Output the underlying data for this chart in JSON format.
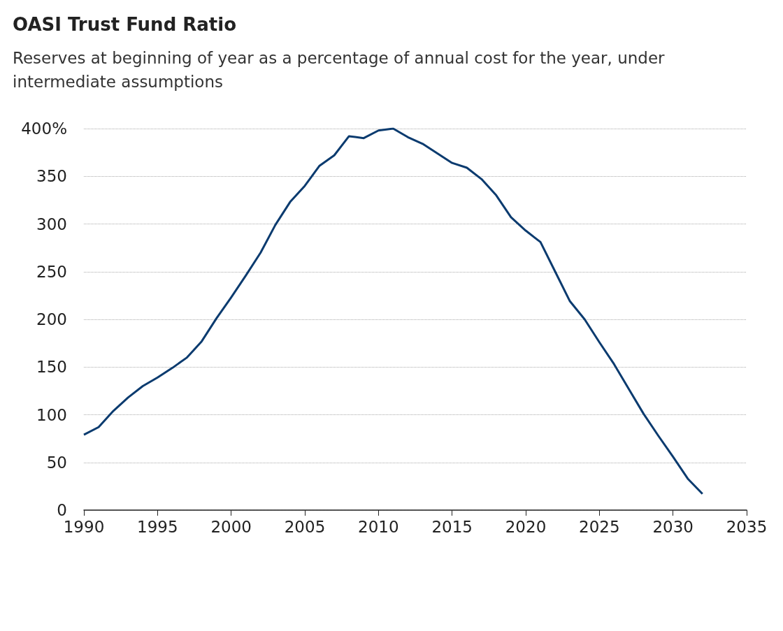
{
  "chart_data": {
    "type": "line",
    "title": "OASI Trust Fund Ratio",
    "subtitle": "Reserves at beginning of year as a percentage of annual cost for the year, under intermediate assumptions",
    "x": [
      1990,
      1991,
      1992,
      1993,
      1994,
      1995,
      1996,
      1997,
      1998,
      1999,
      2000,
      2001,
      2002,
      2003,
      2004,
      2005,
      2006,
      2007,
      2008,
      2009,
      2010,
      2011,
      2012,
      2013,
      2014,
      2015,
      2016,
      2017,
      2018,
      2019,
      2020,
      2021,
      2022,
      2023,
      2024,
      2025,
      2026,
      2027,
      2028,
      2029,
      2030,
      2031,
      2032
    ],
    "series": [
      {
        "color": "#0b3b6f",
        "values": [
          79,
          87,
          104,
          118,
          130,
          139,
          149,
          160,
          177,
          201,
          223,
          246,
          270,
          299,
          323,
          340,
          361,
          372,
          392,
          390,
          398,
          400,
          391,
          384,
          374,
          364,
          359,
          347,
          330,
          307,
          293,
          281,
          250,
          219,
          200,
          176,
          153,
          127,
          101,
          78,
          56,
          33,
          17
        ]
      }
    ],
    "xlim": [
      1990,
      2035
    ],
    "xticks": [
      1990,
      1995,
      2000,
      2005,
      2010,
      2015,
      2020,
      2025,
      2030,
      2035
    ],
    "ylim": [
      0,
      400
    ],
    "yticks": [
      0,
      50,
      100,
      150,
      200,
      250,
      300,
      350,
      {
        "value": 400,
        "label": "400%"
      }
    ],
    "grid": "y",
    "marker": "none",
    "line_style": "solid"
  }
}
